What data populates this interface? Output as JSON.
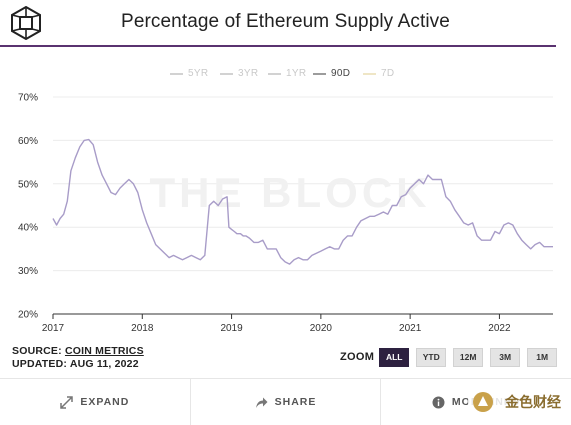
{
  "header": {
    "title": "Percentage of Ethereum Supply Active"
  },
  "watermark": "THE BLOCK",
  "range_selector": [
    {
      "label": "5YR",
      "active": false
    },
    {
      "label": "3YR",
      "active": false
    },
    {
      "label": "1YR",
      "active": false
    },
    {
      "label": "90D",
      "active": true
    },
    {
      "label": "7D",
      "active": false
    }
  ],
  "chart_data": {
    "type": "line",
    "title": "Percentage of Ethereum Supply Active",
    "xlabel": "",
    "ylabel": "",
    "x_ticks": [
      "2017",
      "2018",
      "2019",
      "2020",
      "2021",
      "2022"
    ],
    "y_ticks": [
      "20%",
      "30%",
      "40%",
      "50%",
      "60%",
      "70%"
    ],
    "xlim": [
      2017.0,
      2022.6
    ],
    "ylim": [
      20,
      70
    ],
    "grid": "horizontal",
    "line_color": "#a89cc8",
    "series": [
      {
        "x": [
          2017.0,
          2017.04,
          2017.08,
          2017.12,
          2017.16,
          2017.2,
          2017.25,
          2017.3,
          2017.35,
          2017.4,
          2017.45,
          2017.5,
          2017.55,
          2017.6,
          2017.65,
          2017.7,
          2017.75,
          2017.8,
          2017.85,
          2017.9,
          2017.95,
          2018.0,
          2018.05,
          2018.1,
          2018.15,
          2018.2,
          2018.25,
          2018.3,
          2018.35,
          2018.4,
          2018.45,
          2018.5,
          2018.55,
          2018.6,
          2018.65,
          2018.7,
          2018.75,
          2018.8,
          2018.85,
          2018.9,
          2018.95,
          2018.97,
          2019.0,
          2019.03,
          2019.06,
          2019.1,
          2019.13,
          2019.14,
          2019.16,
          2019.2,
          2019.25,
          2019.3,
          2019.35,
          2019.4,
          2019.45,
          2019.5,
          2019.55,
          2019.6,
          2019.65,
          2019.7,
          2019.75,
          2019.8,
          2019.85,
          2019.9,
          2019.95,
          2020.0,
          2020.05,
          2020.1,
          2020.15,
          2020.2,
          2020.25,
          2020.3,
          2020.35,
          2020.4,
          2020.45,
          2020.5,
          2020.55,
          2020.6,
          2020.65,
          2020.7,
          2020.75,
          2020.8,
          2020.85,
          2020.9,
          2020.95,
          2021.0,
          2021.05,
          2021.1,
          2021.15,
          2021.2,
          2021.25,
          2021.3,
          2021.35,
          2021.4,
          2021.45,
          2021.5,
          2021.55,
          2021.6,
          2021.65,
          2021.7,
          2021.75,
          2021.8,
          2021.85,
          2021.9,
          2021.95,
          2022.0,
          2022.05,
          2022.1,
          2022.15,
          2022.2,
          2022.25,
          2022.3,
          2022.35,
          2022.4,
          2022.45,
          2022.5,
          2022.55,
          2022.6
        ],
        "y": [
          42,
          40.5,
          42,
          43,
          46,
          53,
          56,
          58.5,
          60,
          60.2,
          59,
          55,
          52,
          50,
          48,
          47.5,
          49,
          50,
          51,
          50,
          48,
          44,
          41,
          38.5,
          36,
          35,
          34,
          33,
          33.5,
          33,
          32.5,
          33,
          33.5,
          33,
          32.5,
          33.5,
          45,
          46,
          45,
          46.5,
          47,
          40,
          39.5,
          39,
          38.5,
          38.5,
          38,
          38,
          38,
          37.5,
          36.5,
          36.5,
          37,
          35,
          35,
          35,
          33,
          32,
          31.5,
          32.5,
          33,
          32.5,
          32.5,
          33.5,
          34,
          34.5,
          35,
          35.5,
          35,
          35,
          37,
          38,
          38,
          40,
          41.5,
          42,
          42.5,
          42.5,
          43,
          43.5,
          43,
          45,
          45,
          47,
          47.5,
          49,
          50,
          51,
          50,
          52,
          51,
          51,
          51,
          47,
          46,
          44,
          42.5,
          41,
          40.5,
          41,
          38,
          37,
          37,
          37,
          39,
          38.5,
          40.5,
          41,
          40.5,
          38.5,
          37,
          36,
          35,
          36,
          36.5,
          35.5,
          35.5,
          35.5
        ]
      }
    ]
  },
  "source": {
    "label": "SOURCE:",
    "value": "COIN METRICS"
  },
  "updated": {
    "label": "UPDATED:",
    "value": "AUG 11, 2022"
  },
  "zoom": {
    "label": "ZOOM",
    "buttons": [
      {
        "label": "ALL",
        "active": true
      },
      {
        "label": "YTD",
        "active": false
      },
      {
        "label": "12M",
        "active": false
      },
      {
        "label": "3M",
        "active": false
      },
      {
        "label": "1M",
        "active": false
      }
    ]
  },
  "footer": {
    "expand_label": "EXPAND",
    "share_label": "SHARE",
    "more_label": "MORE INFO",
    "badge_text": "金色财经"
  }
}
